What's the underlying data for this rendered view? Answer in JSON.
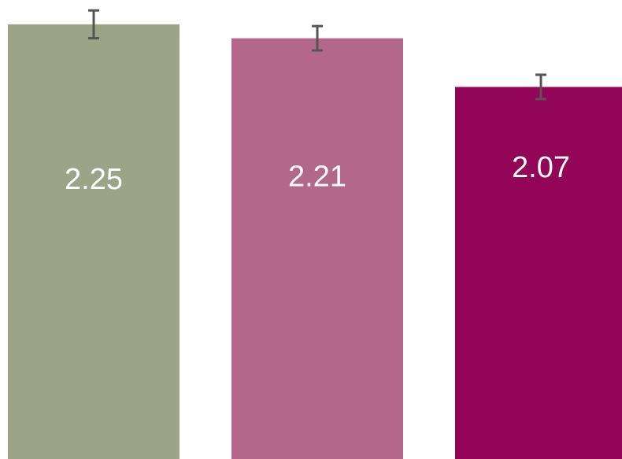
{
  "chart_data": {
    "type": "bar",
    "categories": [
      null,
      null,
      null
    ],
    "series": [
      {
        "values": [
          2.25,
          2.21,
          2.07
        ],
        "errors": [
          0.04,
          0.035,
          0.035
        ],
        "colors": [
          "#9ca387",
          "#b3678a",
          "#930557"
        ]
      }
    ],
    "ylim": [
      1,
      2.32
    ]
  }
}
